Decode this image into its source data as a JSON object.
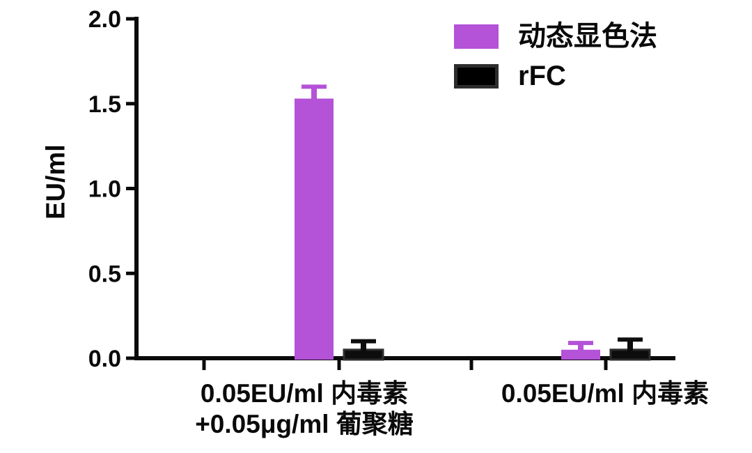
{
  "figure": {
    "background": "#ffffff",
    "axis_color": "#0a0a0a"
  },
  "chart_data": {
    "type": "bar",
    "title": "",
    "xlabel": "",
    "ylabel": "EU/ml",
    "ylim": [
      0,
      2.0
    ],
    "yticks": [
      {
        "value": 0.0,
        "label": "0.0"
      },
      {
        "value": 0.5,
        "label": "0.5"
      },
      {
        "value": 1.0,
        "label": "1.0"
      },
      {
        "value": 1.5,
        "label": "1.5"
      },
      {
        "value": 2.0,
        "label": "2.0"
      }
    ],
    "grid": false,
    "legend_position": "top-right",
    "categories": [
      {
        "lines": [
          "0.05EU/ml 内毒素",
          "+0.05μg/ml 葡聚糖"
        ]
      },
      {
        "lines": [
          "0.05EU/ml 内毒素"
        ]
      }
    ],
    "series": [
      {
        "name": "动态显色法",
        "color": "#b452d8",
        "values": [
          1.53,
          0.05
        ],
        "errors_sd": [
          0.07,
          0.04
        ]
      },
      {
        "name": "rFC",
        "color": "#0d0d0d",
        "edge_color": "#2d2d2d",
        "values": [
          0.05,
          0.05
        ],
        "errors_sd": [
          0.05,
          0.06
        ]
      }
    ]
  }
}
